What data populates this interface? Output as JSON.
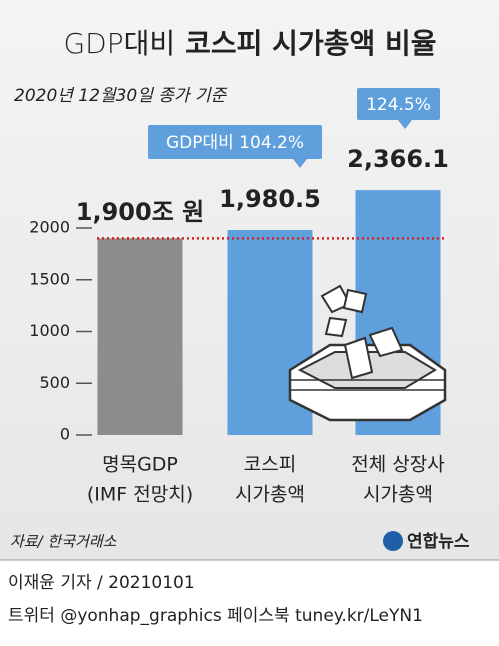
{
  "chart_data": {
    "type": "bar",
    "title": [
      "GDP대비",
      "코스피 시가총액 비율"
    ],
    "subtitle": "2020년 12월30일 종가 기준",
    "categories": [
      [
        "명목GDP",
        "(IMF 전망치)"
      ],
      [
        "코스피",
        "시가총액"
      ],
      [
        "전체 상장사",
        "시가총액"
      ]
    ],
    "values": [
      1900,
      1980.5,
      2366.1
    ],
    "value_labels": [
      "1,900조 원",
      "1,980.5",
      "2,366.1"
    ],
    "colors": [
      "#8c8c8c",
      "#5fa0dc",
      "#5fa0dc"
    ],
    "annotations": [
      {
        "text": "GDP대비 104.2%",
        "bar": 1
      },
      {
        "text": "124.5%",
        "bar": 2
      }
    ],
    "reference_line": {
      "value": 1900,
      "color": "#d62020"
    },
    "ylim": [
      0,
      2000
    ],
    "yticks": [
      0,
      500,
      1000,
      1500,
      2000
    ],
    "source": "자료/ 한국거래소",
    "logo": "연합뉴스",
    "credit": "이재윤 기자 / 20210101",
    "social": "트위터 @yonhap_graphics  페이스북 tuney.kr/LeYN1"
  }
}
